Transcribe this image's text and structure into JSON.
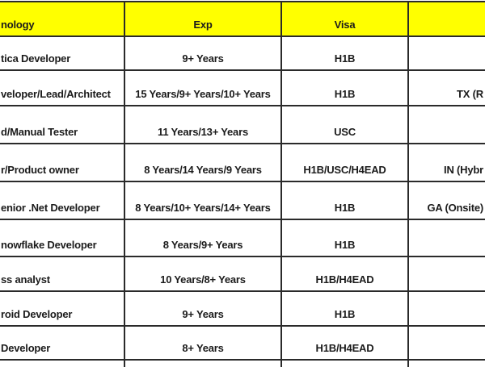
{
  "table": {
    "columns": [
      {
        "label": "nology"
      },
      {
        "label": "Exp"
      },
      {
        "label": "Visa"
      },
      {
        "label": ""
      }
    ],
    "rows": [
      {
        "technology": "tica Developer",
        "exp": "9+ Years",
        "visa": "H1B",
        "location": ""
      },
      {
        "technology": "veloper/Lead/Architect",
        "exp": "15 Years/9+ Years/10+ Years",
        "visa": "H1B",
        "location": "TX (R"
      },
      {
        "technology": "d/Manual Tester",
        "exp": "11 Years/13+ Years",
        "visa": "USC",
        "location": ""
      },
      {
        "technology": "r/Product owner",
        "exp": "8 Years/14 Years/9 Years",
        "visa": "H1B/USC/H4EAD",
        "location": "IN (Hybr"
      },
      {
        "technology": "enior .Net Developer",
        "exp": "8 Years/10+ Years/14+ Years",
        "visa": "H1B",
        "location": "GA (Onsite)"
      },
      {
        "technology": "nowflake Developer",
        "exp": "8 Years/9+ Years",
        "visa": "H1B",
        "location": ""
      },
      {
        "technology": "ss analyst",
        "exp": "10 Years/8+ Years",
        "visa": "H1B/H4EAD",
        "location": ""
      },
      {
        "technology": "roid Developer",
        "exp": "9+ Years",
        "visa": "H1B",
        "location": ""
      },
      {
        "technology": "Developer",
        "exp": "8+ Years",
        "visa": "H1B/H4EAD",
        "location": ""
      }
    ],
    "colors": {
      "header_background": "#ffff00",
      "grid_border": "#2a2a2a",
      "text": "#1b1b1b"
    }
  }
}
